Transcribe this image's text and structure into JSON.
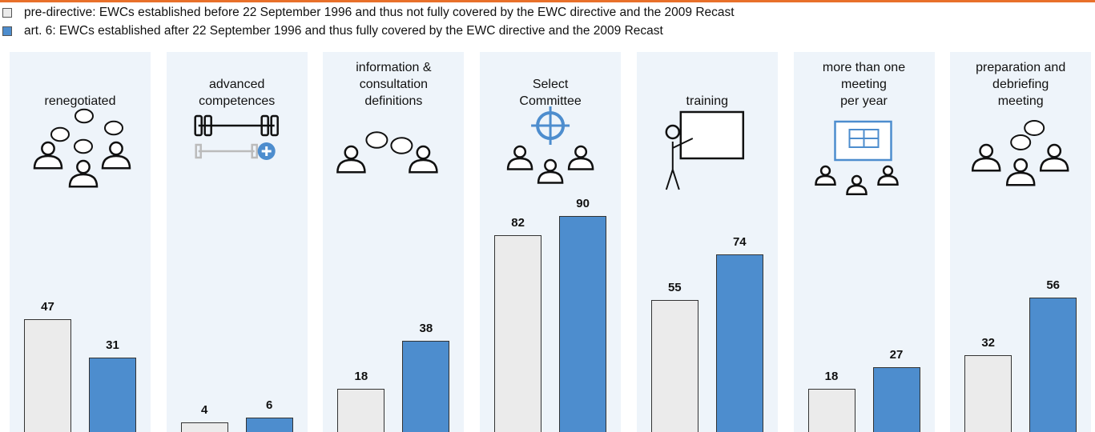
{
  "chart_data": {
    "type": "bar",
    "categories": [
      "renegotiated",
      "advanced\ncompetences",
      "information &\nconsultation\ndefinitions",
      "Select\nCommittee",
      "training",
      "more than one\nmeeting\nper year",
      "preparation and\ndebriefing\nmeeting"
    ],
    "series": [
      {
        "name": "pre-directive: EWCs established before 22 September 1996 and thus not fully covered by the EWC directive and the 2009 Recast",
        "color": "#ebebeb",
        "values": [
          47,
          4,
          18,
          82,
          55,
          18,
          32
        ]
      },
      {
        "name": "art. 6: EWCs established after 22 September 1996 and thus fully covered by the EWC directive and the 2009 Recast",
        "color": "#4d8dce",
        "values": [
          31,
          6,
          38,
          90,
          74,
          27,
          56
        ]
      }
    ],
    "ylim": [
      0,
      100
    ]
  }
}
